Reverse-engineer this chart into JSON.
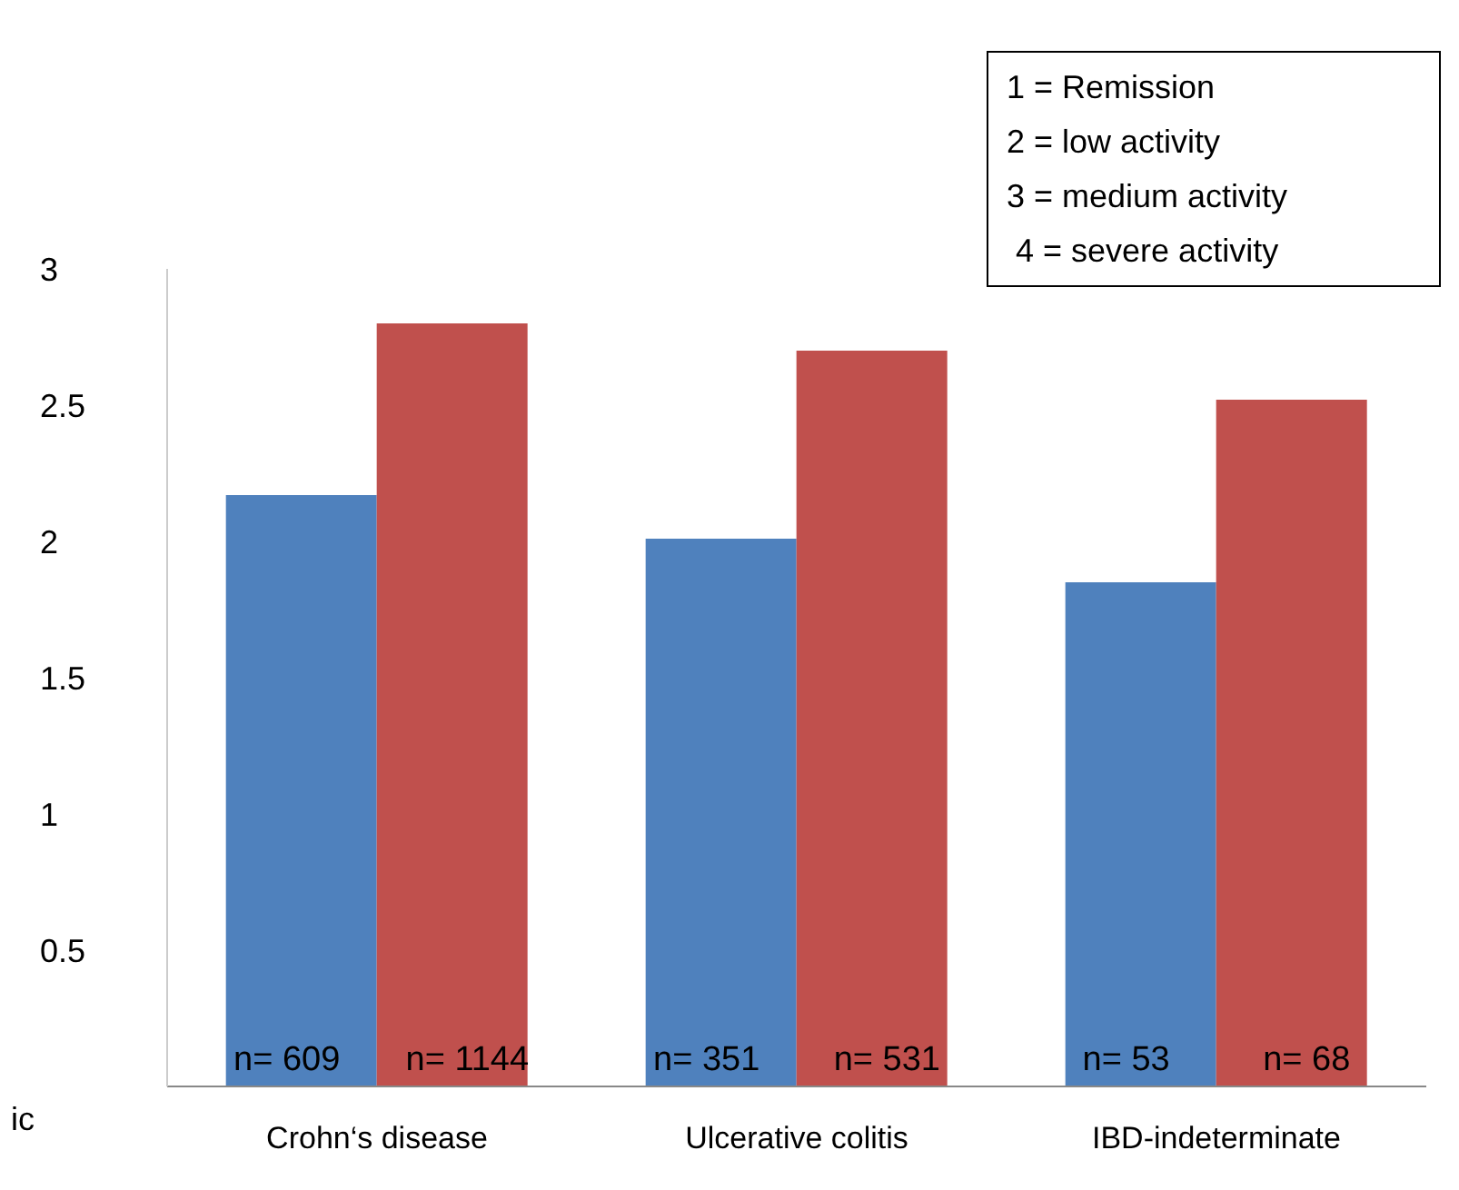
{
  "chart_data": {
    "type": "bar",
    "categories": [
      "Crohn‘s disease",
      "Ulcerative colitis",
      "IBD-indeterminate"
    ],
    "series": [
      {
        "color": "#4f81bd",
        "values": [
          2.17,
          2.01,
          1.85
        ]
      },
      {
        "color": "#c0504d",
        "values": [
          2.8,
          2.7,
          2.52
        ]
      }
    ],
    "ylim": [
      0,
      3
    ],
    "yticks": [
      0.5,
      1,
      1.5,
      2,
      2.5,
      3
    ],
    "annotations": [
      "1 = Remission\n2 = low activity\n3 = medium activity\n 4 = severe activity",
      "ic",
      "n= 609",
      "n= 1144",
      "n= 351",
      "n= 531",
      "n= 53",
      "n= 68"
    ]
  }
}
